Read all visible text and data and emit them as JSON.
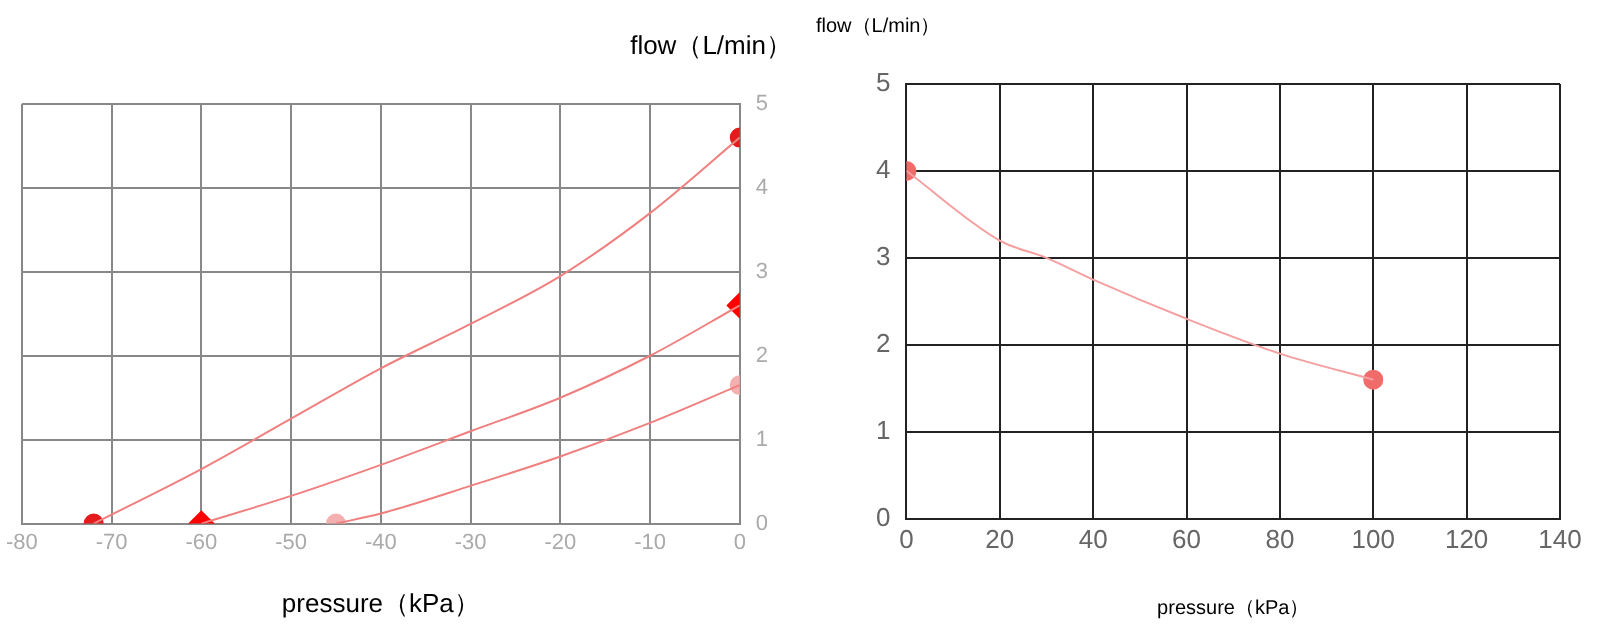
{
  "chart_data": [
    {
      "type": "line",
      "xlabel": "pressure（kPa）",
      "ylabel": "flow（L/min）",
      "xlim": [
        -80,
        0
      ],
      "xticks": [
        -80,
        -70,
        -60,
        -50,
        -40,
        -30,
        -20,
        -10,
        0
      ],
      "ylim": [
        0,
        5
      ],
      "yticks": [
        0,
        1,
        2,
        3,
        4,
        5
      ],
      "grid": true,
      "legend": false,
      "line_style": "solid",
      "series": [
        {
          "color": "#f08080",
          "marker": "none",
          "x": [
            -72,
            -60,
            -50,
            -40,
            -30,
            -20,
            -10,
            0
          ],
          "values": [
            0,
            0.65,
            1.25,
            1.85,
            2.38,
            2.95,
            3.7,
            4.6
          ]
        },
        {
          "color": "#f08080",
          "marker": "none",
          "x": [
            -60,
            -50,
            -40,
            -30,
            -20,
            -10,
            0
          ],
          "values": [
            0,
            0.33,
            0.7,
            1.1,
            1.5,
            2.0,
            2.6
          ]
        },
        {
          "color": "#f08080",
          "marker": "none",
          "x": [
            -45,
            -40,
            -30,
            -20,
            -10,
            0
          ],
          "values": [
            0,
            0.12,
            0.45,
            0.8,
            1.2,
            1.65
          ]
        },
        {
          "type": "scatter",
          "color": "#e41a1c",
          "marker": "circle",
          "x": [
            -72,
            0
          ],
          "values": [
            0,
            4.6
          ]
        },
        {
          "type": "scatter",
          "color": "#ff0000",
          "marker": "diamond",
          "x": [
            -60,
            0
          ],
          "values": [
            0,
            2.6
          ]
        },
        {
          "type": "scatter",
          "color": "#f4b0b0",
          "marker": "circle",
          "x": [
            -45,
            0
          ],
          "values": [
            0,
            1.65
          ]
        }
      ]
    },
    {
      "type": "line",
      "xlabel": "pressure（kPa）",
      "ylabel": "flow（L/min）",
      "xlim": [
        0,
        140
      ],
      "xticks": [
        0,
        20,
        40,
        60,
        80,
        100,
        120,
        140
      ],
      "ylim": [
        0,
        5
      ],
      "yticks": [
        0,
        1,
        2,
        3,
        4,
        5
      ],
      "grid": true,
      "legend": false,
      "line_style": "solid",
      "series": [
        {
          "color": "#f4a0a0",
          "marker": "none",
          "x": [
            0,
            20,
            30,
            40,
            60,
            80,
            100
          ],
          "values": [
            4,
            3.2,
            3.0,
            2.75,
            2.3,
            1.9,
            1.6
          ]
        },
        {
          "type": "scatter",
          "color": "#f26b6b",
          "marker": "circle",
          "x": [
            0,
            100
          ],
          "values": [
            4,
            1.6
          ]
        }
      ]
    }
  ]
}
